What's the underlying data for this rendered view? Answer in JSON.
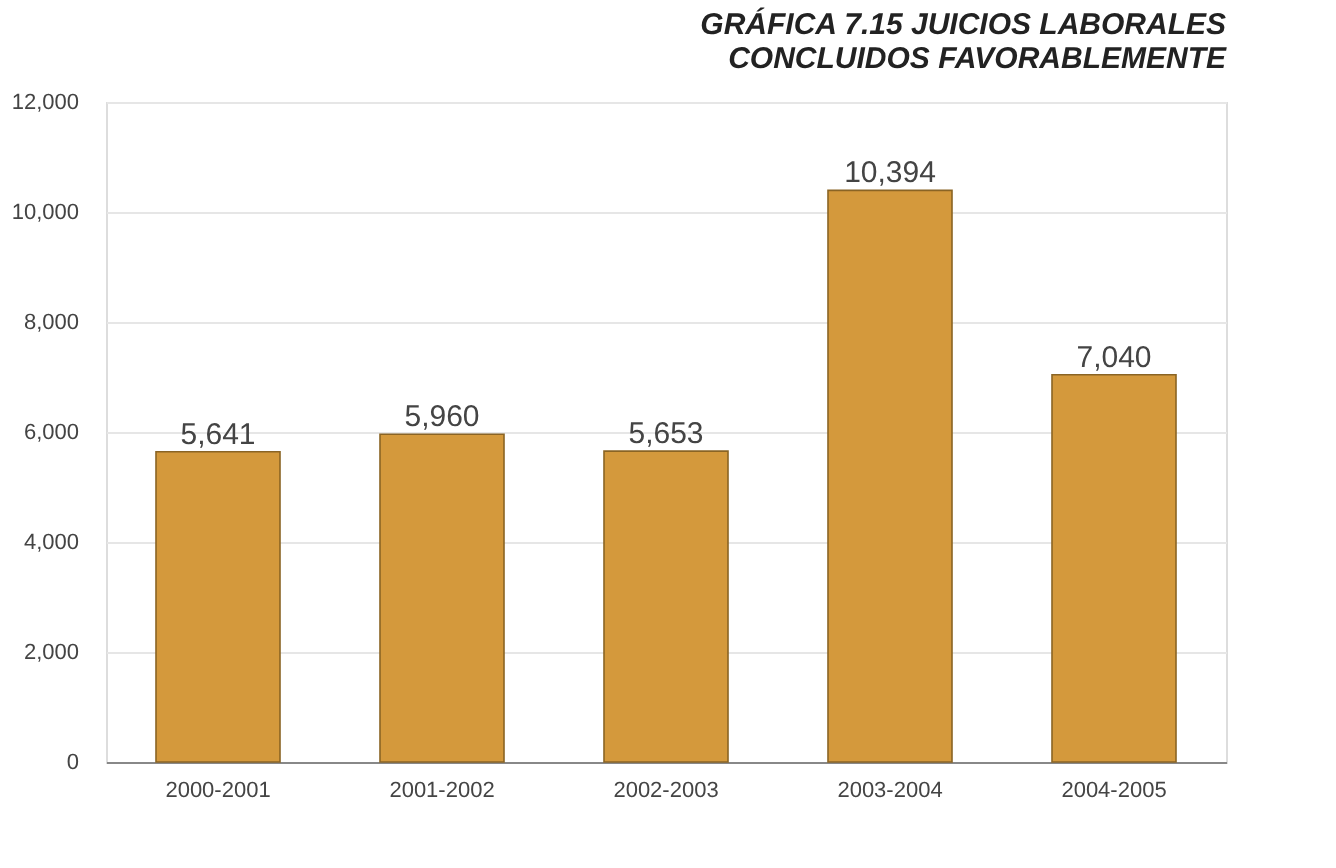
{
  "chart_data": {
    "type": "bar",
    "title": "GRÁFICA 7.15 JUICIOS LABORALES\nCONCLUIDOS FAVORABLEMENTE",
    "categories": [
      "2000-2001",
      "2001-2002",
      "2002-2003",
      "2003-2004",
      "2004-2005"
    ],
    "values": [
      5641,
      5960,
      5653,
      10394,
      7040
    ],
    "color": "#d4993c",
    "value_labels": [
      "5,641",
      "5,960",
      "5,653",
      "10,394",
      "7,040"
    ],
    "ylim": [
      0,
      12000
    ],
    "yticks": [
      0,
      {
        "value": 2000,
        "label": "2,000"
      },
      {
        "value": 4000,
        "label": "4,000"
      },
      {
        "value": 6000,
        "label": "6,000"
      },
      {
        "value": 8000,
        "label": "8,000"
      },
      {
        "value": 10000,
        "label": "10,000"
      },
      {
        "value": 12000,
        "label": "12,000"
      }
    ],
    "grid": "y"
  }
}
